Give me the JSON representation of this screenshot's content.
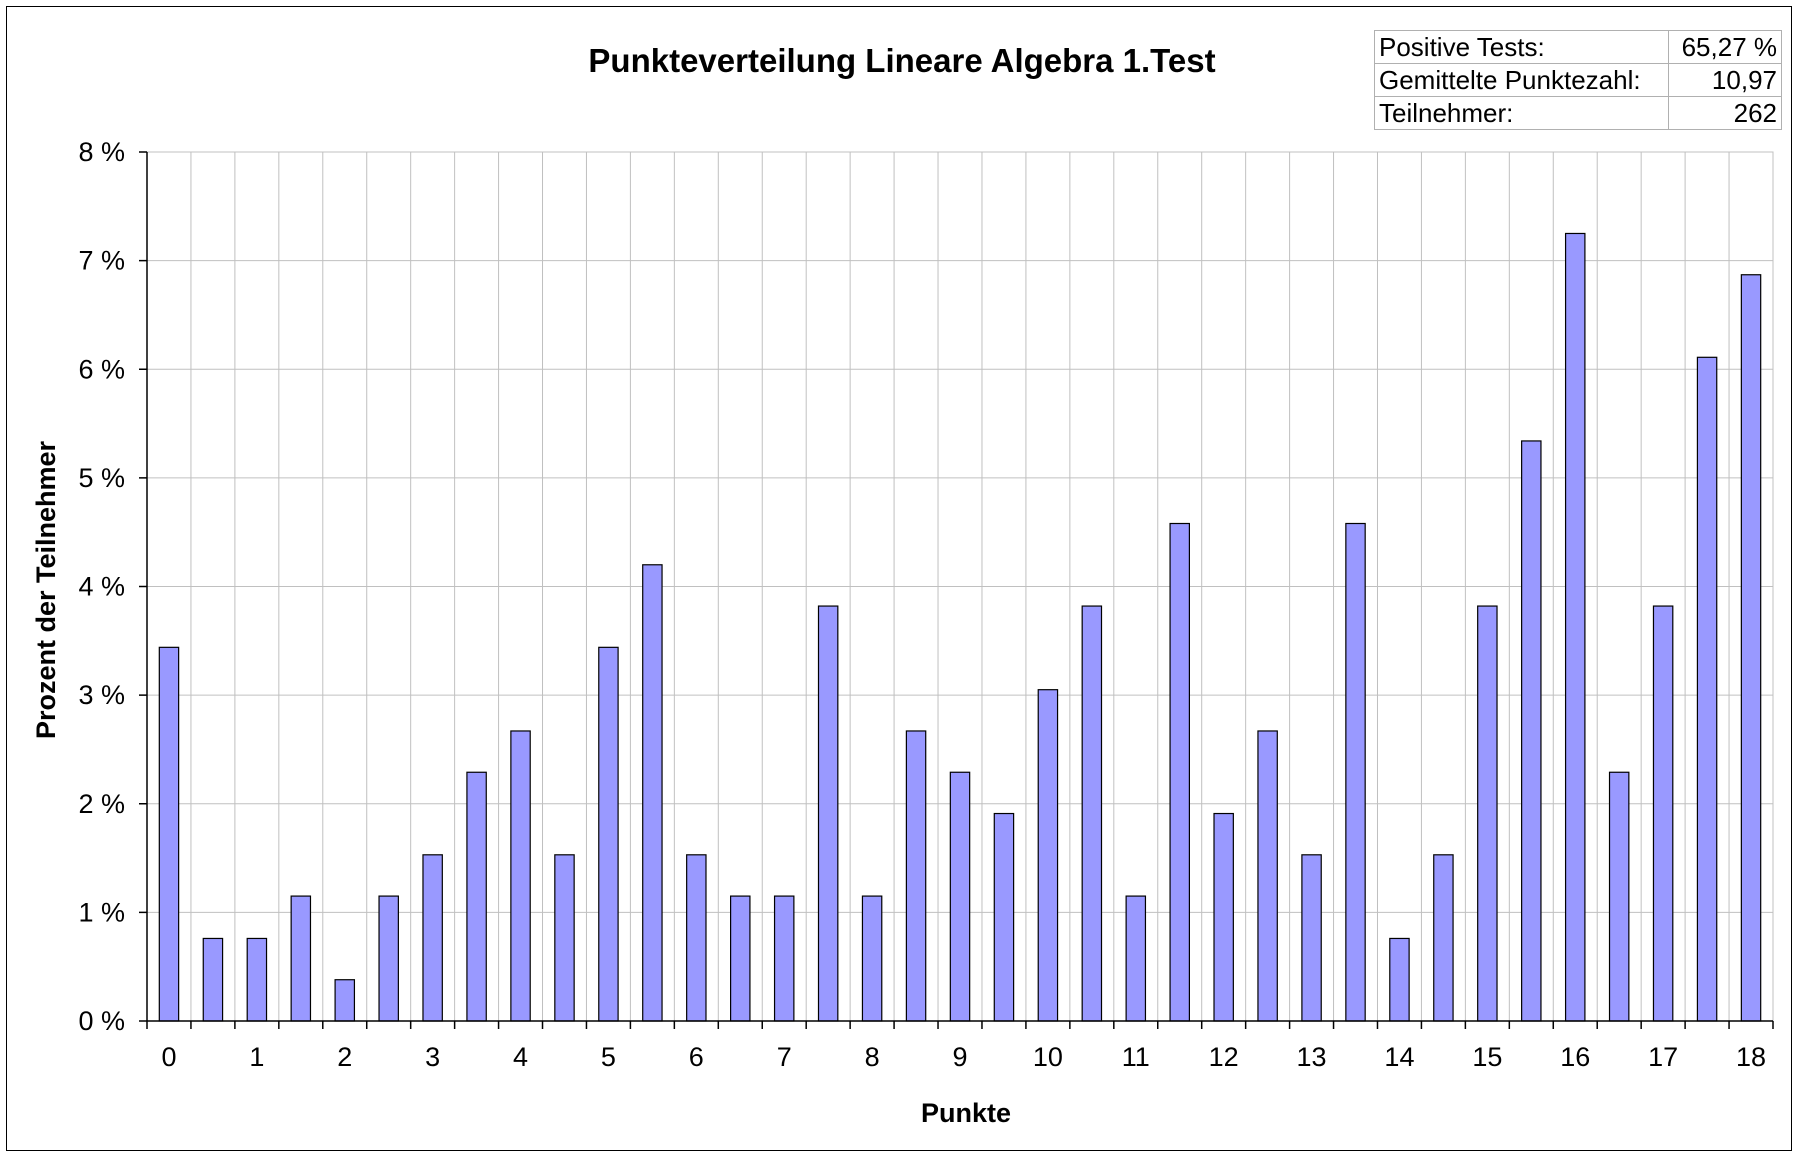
{
  "chart_data": {
    "type": "bar",
    "title": "Punkteverteilung Lineare Algebra 1.Test",
    "xlabel": "Punkte",
    "ylabel": "Prozent der Teilnehmer",
    "ylim": [
      0,
      8
    ],
    "yticks": [
      "0 %",
      "1 %",
      "2 %",
      "3 %",
      "4 %",
      "5 %",
      "6 %",
      "7 %",
      "8 %"
    ],
    "grid": true,
    "bar_color": "#9999ff",
    "x_tick_labels": [
      "0",
      "1",
      "2",
      "3",
      "4",
      "5",
      "6",
      "7",
      "8",
      "9",
      "10",
      "11",
      "12",
      "13",
      "14",
      "15",
      "16",
      "17",
      "18"
    ],
    "categories": [
      "0",
      "0.5",
      "1",
      "1.5",
      "2",
      "2.5",
      "3",
      "3.5",
      "4",
      "4.5",
      "5",
      "5.5",
      "6",
      "6.5",
      "7",
      "7.5",
      "8",
      "8.5",
      "9",
      "9.5",
      "10",
      "10.5",
      "11",
      "11.5",
      "12",
      "12.5",
      "13",
      "13.5",
      "14",
      "14.5",
      "15",
      "15.5",
      "16",
      "16.5",
      "17",
      "17.5",
      "18"
    ],
    "values": [
      3.44,
      0.76,
      0.76,
      1.15,
      0.38,
      1.15,
      1.53,
      2.29,
      2.67,
      1.53,
      3.44,
      4.2,
      1.53,
      1.15,
      1.15,
      3.82,
      1.15,
      2.67,
      2.29,
      1.91,
      3.05,
      3.82,
      1.15,
      4.58,
      1.91,
      2.67,
      1.53,
      4.58,
      0.76,
      1.53,
      3.82,
      5.34,
      7.25,
      2.29,
      3.82,
      6.11,
      6.87
    ]
  },
  "stats": [
    {
      "label": "Positive Tests:",
      "value": "65,27 %"
    },
    {
      "label": "Gemittelte Punktezahl:",
      "value": "10,97"
    },
    {
      "label": "Teilnehmer:",
      "value": "262"
    }
  ]
}
